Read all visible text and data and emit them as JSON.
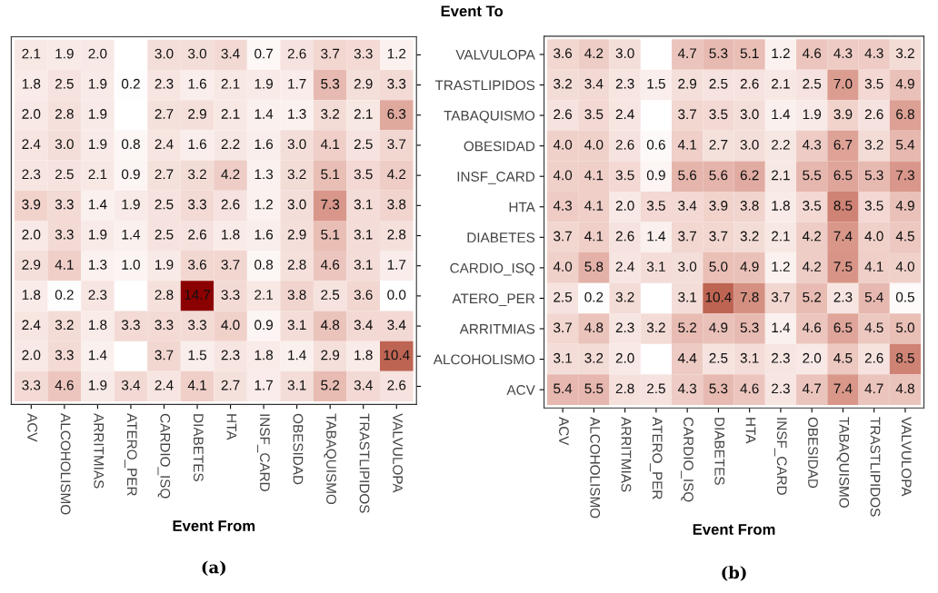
{
  "chart_data": [
    {
      "type": "heatmap",
      "xlabel": "Event From",
      "annotations": [
        "(a)"
      ],
      "tick_labels": "x",
      "y_categories": [
        null,
        null,
        null,
        null,
        null,
        null,
        null,
        null,
        null,
        null,
        null,
        null
      ],
      "categories": [
        "ACV",
        "ALCOHOLISMO",
        "ARRITMIAS",
        "ATERO_PER",
        "CARDIO_ISQ",
        "DIABETES",
        "HTA",
        "INSF_CARD",
        "OBESIDAD",
        "TABAQUISMO",
        "TRASTLIPIDOS",
        "VALVULOPA"
      ],
      "cells": [
        [
          2.1,
          1.9,
          2.0,
          null,
          3.0,
          3.0,
          3.4,
          0.7,
          2.6,
          3.7,
          3.3,
          1.2
        ],
        [
          1.8,
          2.5,
          1.9,
          0.2,
          2.3,
          1.6,
          2.1,
          1.9,
          1.7,
          5.3,
          2.9,
          3.3
        ],
        [
          2.0,
          2.8,
          1.9,
          null,
          2.7,
          2.9,
          2.1,
          1.4,
          1.3,
          3.2,
          2.1,
          6.3
        ],
        [
          2.4,
          3.0,
          1.9,
          0.8,
          2.4,
          1.6,
          2.2,
          1.6,
          3.0,
          4.1,
          2.5,
          3.7
        ],
        [
          2.3,
          2.5,
          2.1,
          0.9,
          2.7,
          3.2,
          4.2,
          1.3,
          3.2,
          5.1,
          3.5,
          4.2
        ],
        [
          3.9,
          3.3,
          1.4,
          1.9,
          2.5,
          3.3,
          2.6,
          1.2,
          3.0,
          7.3,
          3.1,
          3.8
        ],
        [
          2.0,
          3.3,
          1.9,
          1.4,
          2.5,
          2.6,
          1.8,
          1.6,
          2.9,
          5.1,
          3.1,
          2.8
        ],
        [
          2.9,
          4.1,
          1.3,
          1.0,
          1.9,
          3.6,
          3.7,
          0.8,
          2.8,
          4.6,
          3.1,
          1.7
        ],
        [
          1.8,
          0.2,
          2.3,
          null,
          2.8,
          14.7,
          3.3,
          2.1,
          3.8,
          2.5,
          3.6,
          0.0
        ],
        [
          2.4,
          3.2,
          1.8,
          3.3,
          3.3,
          3.3,
          4.0,
          0.9,
          3.1,
          4.8,
          3.4,
          3.4
        ],
        [
          2.0,
          3.3,
          1.4,
          null,
          3.7,
          1.5,
          2.3,
          1.8,
          1.4,
          2.9,
          1.8,
          10.4
        ],
        [
          3.3,
          4.6,
          1.9,
          3.4,
          2.4,
          4.1,
          2.7,
          1.7,
          3.1,
          5.2,
          3.4,
          2.6
        ]
      ],
      "cell_labels": [
        [
          "2.1",
          "1.9",
          "2.0",
          null,
          "3.0",
          "3.0",
          "3.4",
          "0.7",
          "2.6",
          "3.7",
          "3.3",
          "1.2"
        ],
        [
          "1.8",
          "2.5",
          "1.9",
          "0.2",
          "2.3",
          "1.6",
          "2.1",
          "1.9",
          "1.7",
          "5.3",
          "2.9",
          "3.3"
        ],
        [
          "2.0",
          "2.8",
          "1.9",
          null,
          "2.7",
          "2.9",
          "2.1",
          "1.4",
          "1.3",
          "3.2",
          "2.1",
          "6.3"
        ],
        [
          "2.4",
          "3.0",
          "1.9",
          "0.8",
          "2.4",
          "1.6",
          "2.2",
          "1.6",
          "3.0",
          "4.1",
          "2.5",
          "3.7"
        ],
        [
          "2.3",
          "2.5",
          "2.1",
          "0.9",
          "2.7",
          "3.2",
          "4.2",
          "1.3",
          "3.2",
          "5.1",
          "3.5",
          "4.2"
        ],
        [
          "3.9",
          "3.3",
          "1.4",
          "1.9",
          "2.5",
          "3.3",
          "2.6",
          "1.2",
          "3.0",
          "7.3",
          "3.1",
          "3.8"
        ],
        [
          "2.0",
          "3.3",
          "1.9",
          "1.4",
          "2.5",
          "2.6",
          "1.8",
          "1.6",
          "2.9",
          "5.1",
          "3.1",
          "2.8"
        ],
        [
          "2.9",
          "4.1",
          "1.3",
          "1.0",
          "1.9",
          "3.6",
          "3.7",
          "0.8",
          "2.8",
          "4.6",
          "3.1",
          "1.7"
        ],
        [
          "1.8",
          "0.2",
          "2.3",
          null,
          "2.8",
          "14.7",
          "3.3",
          "2.1",
          "3.8",
          "2.5",
          "3.6",
          "0.0"
        ],
        [
          "2.4",
          "3.2",
          "1.8",
          "3.3",
          "3.3",
          "3.3",
          "4.0",
          "0.9",
          "3.1",
          "4.8",
          "3.4",
          "3.4"
        ],
        [
          "2.0",
          "3.3",
          "1.4",
          null,
          "3.7",
          "1.5",
          "2.3",
          "1.8",
          "1.4",
          "2.9",
          "1.8",
          "10.4"
        ],
        [
          "3.3",
          "4.6",
          "1.9",
          "3.4",
          "2.4",
          "4.1",
          "2.7",
          "1.7",
          "3.1",
          "5.2",
          "3.4",
          "2.6"
        ]
      ]
    },
    {
      "type": "heatmap",
      "xlabel": "Event From",
      "ylabel": "Event To",
      "annotations": [
        "(b)"
      ],
      "categories": [
        "ACV",
        "ALCOHOLISMO",
        "ARRITMIAS",
        "ATERO_PER",
        "CARDIO_ISQ",
        "DIABETES",
        "HTA",
        "INSF_CARD",
        "OBESIDAD",
        "TABAQUISMO",
        "TRASTLIPIDOS",
        "VALVULOPA"
      ],
      "y_categories": [
        "VALVULOPA",
        "TRASTLIPIDOS",
        "TABAQUISMO",
        "OBESIDAD",
        "INSF_CARD",
        "HTA",
        "DIABETES",
        "CARDIO_ISQ",
        "ATERO_PER",
        "ARRITMIAS",
        "ALCOHOLISMO",
        "ACV"
      ],
      "cells": [
        [
          3.6,
          4.2,
          3.0,
          null,
          4.7,
          5.3,
          5.1,
          1.2,
          4.6,
          4.3,
          4.3,
          3.2
        ],
        [
          3.2,
          3.4,
          2.3,
          1.5,
          2.9,
          2.5,
          2.6,
          2.1,
          2.5,
          7.0,
          3.5,
          4.9
        ],
        [
          2.6,
          3.5,
          2.4,
          null,
          3.7,
          3.5,
          3.0,
          1.4,
          1.9,
          3.9,
          2.6,
          6.8
        ],
        [
          4.0,
          4.0,
          2.6,
          0.6,
          4.1,
          2.7,
          3.0,
          2.2,
          4.3,
          6.7,
          3.2,
          5.4
        ],
        [
          4.0,
          4.1,
          3.5,
          0.9,
          5.6,
          5.6,
          6.2,
          2.1,
          5.5,
          6.5,
          5.3,
          7.3
        ],
        [
          4.3,
          4.1,
          2.0,
          3.5,
          3.4,
          3.9,
          3.8,
          1.8,
          3.5,
          8.5,
          3.5,
          4.9
        ],
        [
          3.7,
          4.1,
          2.6,
          1.4,
          3.7,
          3.7,
          3.2,
          2.1,
          4.2,
          7.4,
          4.0,
          4.5
        ],
        [
          4.0,
          5.8,
          2.4,
          3.1,
          3.0,
          5.0,
          4.9,
          1.2,
          4.2,
          7.5,
          4.1,
          4.0
        ],
        [
          2.5,
          0.2,
          3.2,
          null,
          3.1,
          10.4,
          7.8,
          3.7,
          5.2,
          2.3,
          5.4,
          0.5
        ],
        [
          3.7,
          4.8,
          2.3,
          3.2,
          5.2,
          4.9,
          5.3,
          1.4,
          4.6,
          6.5,
          4.5,
          5.0
        ],
        [
          3.1,
          3.2,
          2.0,
          null,
          4.4,
          2.5,
          3.1,
          2.3,
          2.0,
          4.5,
          2.6,
          8.5
        ],
        [
          5.4,
          5.5,
          2.8,
          2.5,
          4.3,
          5.3,
          4.6,
          2.3,
          4.7,
          7.4,
          4.7,
          4.8
        ]
      ],
      "cell_labels": [
        [
          "3.6",
          "4.2",
          "3.0",
          null,
          "4.7",
          "5.3",
          "5.1",
          "1.2",
          "4.6",
          "4.3",
          "4.3",
          "3.2"
        ],
        [
          "3.2",
          "3.4",
          "2.3",
          "1.5",
          "2.9",
          "2.5",
          "2.6",
          "2.1",
          "2.5",
          "7.0",
          "3.5",
          "4.9"
        ],
        [
          "2.6",
          "3.5",
          "2.4",
          null,
          "3.7",
          "3.5",
          "3.0",
          "1.4",
          "1.9",
          "3.9",
          "2.6",
          "6.8"
        ],
        [
          "4.0",
          "4.0",
          "2.6",
          "0.6",
          "4.1",
          "2.7",
          "3.0",
          "2.2",
          "4.3",
          "6.7",
          "3.2",
          "5.4"
        ],
        [
          "4.0",
          "4.1",
          "3.5",
          "0.9",
          "5.6",
          "5.6",
          "6.2",
          "2.1",
          "5.5",
          "6.5",
          "5.3",
          "7.3"
        ],
        [
          "4.3",
          "4.1",
          "2.0",
          "3.5",
          "3.4",
          "3.9",
          "3.8",
          "1.8",
          "3.5",
          "8.5",
          "3.5",
          "4.9"
        ],
        [
          "3.7",
          "4.1",
          "2.6",
          "1.4",
          "3.7",
          "3.7",
          "3.2",
          "2.1",
          "4.2",
          "7.4",
          "4.0",
          "4.5"
        ],
        [
          "4.0",
          "5.8",
          "2.4",
          "3.1",
          "3.0",
          "5.0",
          "4.9",
          "1.2",
          "4.2",
          "7.5",
          "4.1",
          "4.0"
        ],
        [
          "2.5",
          "0.2",
          "3.2",
          null,
          "3.1",
          "10.4",
          "7.8",
          "3.7",
          "5.2",
          "2.3",
          "5.4",
          "0.5"
        ],
        [
          "3.7",
          "4.8",
          "2.3",
          "3.2",
          "5.2",
          "4.9",
          "5.3",
          "1.4",
          "4.6",
          "6.5",
          "4.5",
          "5.0"
        ],
        [
          "3.1",
          "3.2",
          "2.0",
          null,
          "4.4",
          "2.5",
          "3.1",
          "2.3",
          "2.0",
          "4.5",
          "2.6",
          "8.5"
        ],
        [
          "5.4",
          "5.5",
          "2.8",
          "2.5",
          "4.3",
          "5.3",
          "4.6",
          "2.3",
          "4.7",
          "7.4",
          "4.7",
          "4.8"
        ]
      ]
    }
  ]
}
